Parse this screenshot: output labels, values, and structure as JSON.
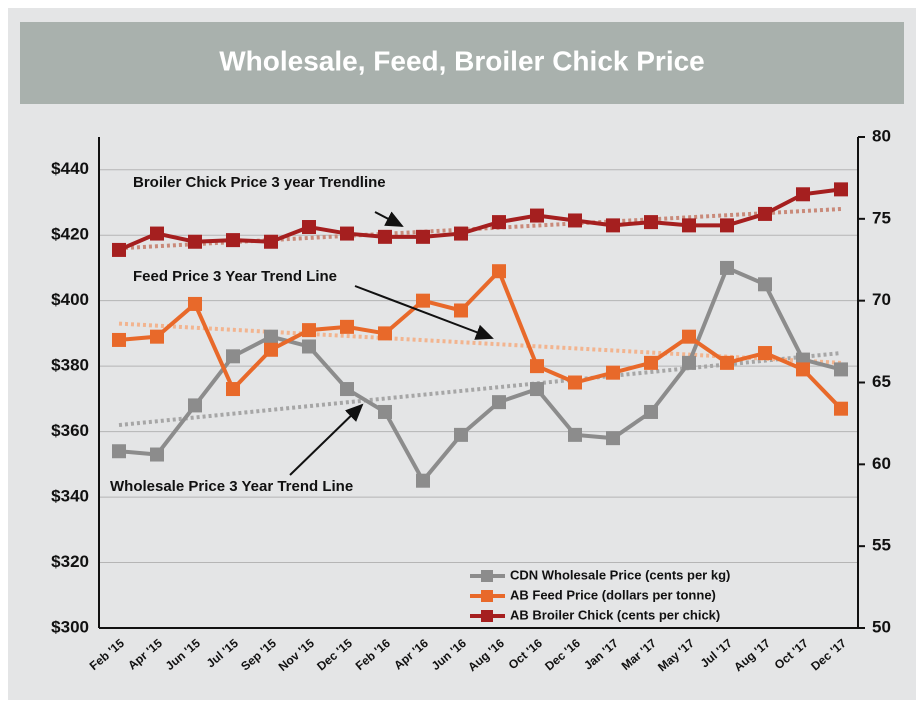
{
  "chart_data": {
    "type": "line",
    "title": "Wholesale, Feed, Broiler Chick Price",
    "categories": [
      "Feb '15",
      "Apr '15",
      "Jun '15",
      "Jul '15",
      "Sep '15",
      "Nov '15",
      "Dec '15",
      "Feb '16",
      "Apr '16",
      "Jun '16",
      "Aug '16",
      "Oct '16",
      "Dec '16",
      "Jan '17",
      "Mar '17",
      "May '17",
      "Jul '17",
      "Aug '17",
      "Oct '17",
      "Dec '17"
    ],
    "series": [
      {
        "name": "CDN Wholesale Price (cents per kg)",
        "color": "#8c8c8c",
        "values": [
          354,
          353,
          368,
          383,
          389,
          386,
          373,
          366,
          345,
          359,
          369,
          373,
          359,
          358,
          366,
          381,
          410,
          405,
          382,
          379
        ]
      },
      {
        "name": "AB Feed Price (dollars per tonne)",
        "color": "#e8692a",
        "values": [
          388,
          389,
          399,
          373,
          385,
          391,
          392,
          390,
          400,
          397,
          409,
          380,
          375,
          378,
          381,
          389,
          381,
          384,
          379,
          367
        ]
      },
      {
        "name": "AB Broiler Chick (cents per chick)",
        "color": "#a51f1f",
        "axis": "y2",
        "values": [
          73.1,
          74.1,
          73.6,
          73.7,
          73.6,
          74.5,
          74.1,
          73.9,
          73.9,
          74.1,
          74.8,
          75.2,
          74.9,
          74.6,
          74.8,
          74.6,
          74.6,
          75.3,
          76.5,
          76.8
        ]
      }
    ],
    "trendlines": [
      {
        "color": "#a6a6a6",
        "values": [
          362,
          384
        ]
      },
      {
        "color": "#f2b48f",
        "values": [
          393,
          381
        ]
      },
      {
        "color": "#c98a7a",
        "axis": "y2",
        "values": [
          73.2,
          75.6
        ]
      }
    ],
    "annotations": [
      "Broiler Chick Price 3 year Trendline",
      "Feed Price 3 Year Trend Line",
      "Wholesale Price 3 Year Trend Line"
    ],
    "ylim": [
      300,
      450
    ],
    "yticks": [
      {
        "value": 300,
        "label": "$300"
      },
      {
        "value": 320,
        "label": "$320"
      },
      {
        "value": 340,
        "label": "$340"
      },
      {
        "value": 360,
        "label": "$360"
      },
      {
        "value": 380,
        "label": "$380"
      },
      {
        "value": 400,
        "label": "$400"
      },
      {
        "value": 420,
        "label": "$420"
      },
      {
        "value": 440,
        "label": "$440"
      }
    ],
    "y2lim": [
      50,
      80
    ],
    "y2ticks": [
      50,
      55,
      60,
      65,
      70,
      75,
      80
    ],
    "grid": true
  }
}
